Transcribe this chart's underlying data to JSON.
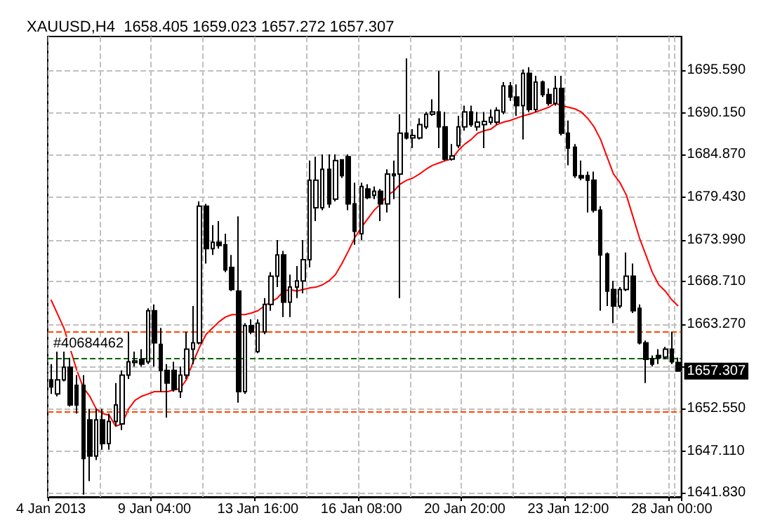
{
  "chart_data": {
    "type": "candlestick",
    "title": "XAUUSD,H4  1658.405 1659.023 1657.272 1657.307",
    "categories": [
      "4 Jan 2013",
      null,
      null,
      null,
      null,
      null,
      null,
      null,
      null,
      null,
      null,
      null,
      null,
      null,
      null,
      null,
      "9 Jan 04:00",
      null,
      null,
      null,
      null,
      null,
      null,
      null,
      null,
      null,
      null,
      null,
      null,
      null,
      null,
      null,
      "13 Jan 16:00",
      null,
      null,
      null,
      null,
      null,
      null,
      null,
      null,
      null,
      null,
      null,
      null,
      null,
      null,
      null,
      "16 Jan 08:00",
      null,
      null,
      null,
      null,
      null,
      null,
      null,
      null,
      null,
      null,
      null,
      null,
      null,
      null,
      null,
      "20 Jan 20:00",
      null,
      null,
      null,
      null,
      null,
      null,
      null,
      null,
      null,
      null,
      null,
      null,
      null,
      null,
      null,
      "23 Jan 12:00",
      null,
      null,
      null,
      null,
      null,
      null,
      null,
      null,
      null,
      null,
      null,
      null,
      null,
      null,
      null,
      "28 Jan 00:00",
      null
    ],
    "ohlc": [
      [
        1656.2,
        1658.2,
        1654.4,
        1655.3
      ],
      [
        1654.4,
        1659.8,
        1654.1,
        1656.2
      ],
      [
        1656.2,
        1659.8,
        1656.0,
        1657.8
      ],
      [
        1657.8,
        1659.0,
        1652.8,
        1653.0
      ],
      [
        1655.5,
        1656.8,
        1651.9,
        1653.0
      ],
      [
        1655.5,
        1656.8,
        1641.6,
        1646.2
      ],
      [
        1651.1,
        1652.5,
        1643.3,
        1646.5
      ],
      [
        1646.5,
        1652.5,
        1646.0,
        1651.1
      ],
      [
        1651.1,
        1652.5,
        1647.3,
        1648.1
      ],
      [
        1648.1,
        1651.9,
        1647.3,
        1650.9
      ],
      [
        1650.9,
        1655.8,
        1650.3,
        1653.0
      ],
      [
        1650.6,
        1657.4,
        1649.8,
        1656.8
      ],
      [
        1656.8,
        1662.3,
        1656.3,
        1658.5
      ],
      [
        1658.4,
        1659.8,
        1657.9,
        1658.6
      ],
      [
        1658.8,
        1660.1,
        1657.9,
        1658.2
      ],
      [
        1658.5,
        1665.3,
        1658.2,
        1665.0
      ],
      [
        1665.0,
        1665.8,
        1657.9,
        1660.9
      ],
      [
        1660.7,
        1662.8,
        1654.7,
        1657.4
      ],
      [
        1657.4,
        1658.2,
        1651.4,
        1655.8
      ],
      [
        1657.4,
        1658.5,
        1654.7,
        1655.0
      ],
      [
        1654.7,
        1657.9,
        1653.9,
        1656.8
      ],
      [
        1656.8,
        1662.3,
        1656.3,
        1660.1
      ],
      [
        1660.1,
        1665.6,
        1658.2,
        1660.9
      ],
      [
        1660.9,
        1678.9,
        1660.7,
        1678.3
      ],
      [
        1678.3,
        1678.6,
        1671.0,
        1672.9
      ],
      [
        1672.9,
        1675.9,
        1672.1,
        1673.7
      ],
      [
        1673.7,
        1676.4,
        1672.9,
        1673.3
      ],
      [
        1673.4,
        1674.8,
        1669.9,
        1670.2
      ],
      [
        1670.5,
        1672.1,
        1667.5,
        1667.7
      ],
      [
        1667.5,
        1677.0,
        1653.3,
        1654.7
      ],
      [
        1654.7,
        1663.4,
        1654.4,
        1663.1
      ],
      [
        1663.1,
        1663.9,
        1662.0,
        1662.3
      ],
      [
        1659.8,
        1663.9,
        1659.6,
        1663.4
      ],
      [
        1662.3,
        1666.6,
        1662.0,
        1665.8
      ],
      [
        1665.8,
        1669.9,
        1665.0,
        1669.4
      ],
      [
        1669.4,
        1674.0,
        1668.0,
        1672.1
      ],
      [
        1672.1,
        1672.6,
        1664.2,
        1666.1
      ],
      [
        1666.1,
        1669.6,
        1664.2,
        1668.0
      ],
      [
        1668.0,
        1670.7,
        1666.6,
        1668.8
      ],
      [
        1668.8,
        1674.0,
        1667.2,
        1671.5
      ],
      [
        1671.5,
        1684.1,
        1670.5,
        1681.6
      ],
      [
        1678.1,
        1684.6,
        1676.4,
        1681.6
      ],
      [
        1678.1,
        1684.9,
        1677.8,
        1683.0
      ],
      [
        1683.0,
        1684.9,
        1678.1,
        1678.6
      ],
      [
        1679.2,
        1684.9,
        1678.9,
        1684.1
      ],
      [
        1684.2,
        1684.3,
        1681.9,
        1682.2
      ],
      [
        1684.6,
        1684.9,
        1677.8,
        1678.6
      ],
      [
        1678.6,
        1681.3,
        1673.4,
        1675.1
      ],
      [
        1674.8,
        1681.3,
        1674.0,
        1680.8
      ],
      [
        1680.5,
        1681.1,
        1679.2,
        1679.4
      ],
      [
        1679.7,
        1680.8,
        1679.2,
        1680.2
      ],
      [
        1680.2,
        1680.5,
        1676.4,
        1678.6
      ],
      [
        1678.6,
        1683.0,
        1677.5,
        1682.4
      ],
      [
        1682.2,
        1684.1,
        1679.2,
        1682.4
      ],
      [
        1682.4,
        1690.0,
        1666.6,
        1687.6
      ],
      [
        1687.6,
        1697.1,
        1686.8,
        1687.0
      ],
      [
        1687.0,
        1688.1,
        1685.7,
        1687.3
      ],
      [
        1687.0,
        1689.5,
        1686.8,
        1688.7
      ],
      [
        1688.4,
        1690.3,
        1688.1,
        1690.0
      ],
      [
        1690.0,
        1691.9,
        1689.8,
        1690.3
      ],
      [
        1690.3,
        1695.5,
        1685.7,
        1688.4
      ],
      [
        1688.4,
        1690.3,
        1684.1,
        1684.3
      ],
      [
        1684.3,
        1686.2,
        1684.1,
        1684.7
      ],
      [
        1686.0,
        1689.8,
        1685.7,
        1688.4
      ],
      [
        1688.4,
        1691.1,
        1687.9,
        1690.3
      ],
      [
        1690.3,
        1691.1,
        1688.4,
        1688.7
      ],
      [
        1688.4,
        1690.3,
        1687.9,
        1689.0
      ],
      [
        1688.7,
        1690.3,
        1685.7,
        1689.1
      ],
      [
        1689.0,
        1690.6,
        1688.7,
        1689.6
      ],
      [
        1689.0,
        1690.9,
        1688.7,
        1690.5
      ],
      [
        1690.3,
        1694.1,
        1690.0,
        1693.6
      ],
      [
        1693.6,
        1694.1,
        1691.7,
        1692.2
      ],
      [
        1692.2,
        1693.8,
        1689.8,
        1691.1
      ],
      [
        1691.1,
        1695.7,
        1686.8,
        1695.2
      ],
      [
        1695.2,
        1696.0,
        1690.3,
        1690.6
      ],
      [
        1690.6,
        1694.9,
        1690.3,
        1694.1
      ],
      [
        1694.1,
        1694.3,
        1692.2,
        1692.5
      ],
      [
        1692.5,
        1693.3,
        1691.1,
        1691.4
      ],
      [
        1691.4,
        1694.9,
        1691.1,
        1693.3
      ],
      [
        1693.3,
        1694.9,
        1687.3,
        1687.6
      ],
      [
        1687.6,
        1689.2,
        1683.5,
        1685.7
      ],
      [
        1685.8,
        1686.2,
        1681.9,
        1682.2
      ],
      [
        1682.2,
        1684.1,
        1681.6,
        1681.9
      ],
      [
        1682.2,
        1682.7,
        1677.5,
        1681.6
      ],
      [
        1681.6,
        1682.7,
        1677.5,
        1677.8
      ],
      [
        1677.8,
        1678.3,
        1665.0,
        1672.1
      ],
      [
        1672.2,
        1672.4,
        1665.6,
        1667.5
      ],
      [
        1667.7,
        1668.8,
        1663.4,
        1665.6
      ],
      [
        1665.6,
        1668.0,
        1665.3,
        1667.7
      ],
      [
        1667.7,
        1672.4,
        1667.5,
        1669.4
      ],
      [
        1669.4,
        1671.0,
        1664.7,
        1665.0
      ],
      [
        1665.3,
        1665.8,
        1660.7,
        1660.9
      ],
      [
        1660.9,
        1661.2,
        1655.8,
        1658.8
      ],
      [
        1658.9,
        1659.3,
        1657.9,
        1658.2
      ],
      [
        1659.3,
        1660.1,
        1658.2,
        1659.0
      ],
      [
        1659.1,
        1660.4,
        1658.8,
        1660.1
      ],
      [
        1660.1,
        1662.3,
        1658.2,
        1658.5
      ],
      [
        1658.405,
        1659.023,
        1657.272,
        1657.307
      ]
    ],
    "color": "#000000",
    "series": [
      {
        "type": "line",
        "color": "#ff0000",
        "values": [
          1666.4,
          1664.6,
          1662.8,
          1660.1,
          1657.4,
          1655.2,
          1654.1,
          1652.5,
          1651.9,
          1651.7,
          1650.3,
          1650.6,
          1652.5,
          1653.6,
          1654.1,
          1654.4,
          1654.7,
          1654.7,
          1654.7,
          1654.9,
          1655.1,
          1656.3,
          1658.5,
          1660.4,
          1662.0,
          1662.8,
          1663.6,
          1664.2,
          1664.5,
          1664.5,
          1664.5,
          1664.7,
          1665.0,
          1665.6,
          1666.1,
          1666.6,
          1667.5,
          1667.7,
          1667.5,
          1667.7,
          1667.9,
          1668.0,
          1668.3,
          1668.8,
          1669.6,
          1671.0,
          1672.6,
          1674.3,
          1675.6,
          1676.7,
          1677.8,
          1678.6,
          1679.7,
          1680.2,
          1681.1,
          1681.6,
          1681.9,
          1682.4,
          1683.0,
          1683.5,
          1683.8,
          1684.1,
          1684.3,
          1685.4,
          1686.2,
          1686.8,
          1687.6,
          1687.9,
          1688.1,
          1688.7,
          1689.0,
          1689.2,
          1689.5,
          1689.8,
          1690.0,
          1690.3,
          1690.6,
          1690.9,
          1691.4,
          1691.1,
          1690.9,
          1690.7,
          1690.3,
          1689.5,
          1688.4,
          1686.8,
          1684.6,
          1682.4,
          1681.3,
          1679.7,
          1677.0,
          1674.3,
          1672.1,
          1669.9,
          1668.3,
          1667.5,
          1666.4,
          1665.6
        ]
      }
    ],
    "ylim": [
      1641.3,
      1699.9
    ],
    "yticks": [
      {
        "value": 1641.83,
        "label": "1641.830"
      },
      {
        "value": 1647.11,
        "label": "1647.110"
      },
      {
        "value": 1652.55,
        "label": "1652.550"
      },
      {
        "value": 1657.83,
        "label": null
      },
      {
        "value": 1663.27,
        "label": "1663.270"
      },
      {
        "value": 1668.71,
        "label": "1668.710"
      },
      {
        "value": 1673.99,
        "label": "1673.990"
      },
      {
        "value": 1679.43,
        "label": "1679.430"
      },
      {
        "value": 1684.87,
        "label": "1684.870"
      },
      {
        "value": 1690.15,
        "label": "1690.150"
      },
      {
        "value": 1695.59,
        "label": "1695.590"
      }
    ],
    "annotations": [
      "#40684462"
    ],
    "grid": true,
    "ref_lines": [
      {
        "axis": "y",
        "value": 1662.3,
        "color": "#ff4500",
        "line_style": "dashed"
      },
      {
        "axis": "y",
        "value": 1659.0,
        "color": "#006400",
        "line_style": "dashed"
      },
      {
        "axis": "y",
        "value": 1657.307,
        "label": "1657.307",
        "color": "#c0c0c0",
        "line_style": "solid"
      },
      {
        "axis": "y",
        "value": 1652.1,
        "color": "#ff4500",
        "line_style": "dashed"
      }
    ]
  }
}
